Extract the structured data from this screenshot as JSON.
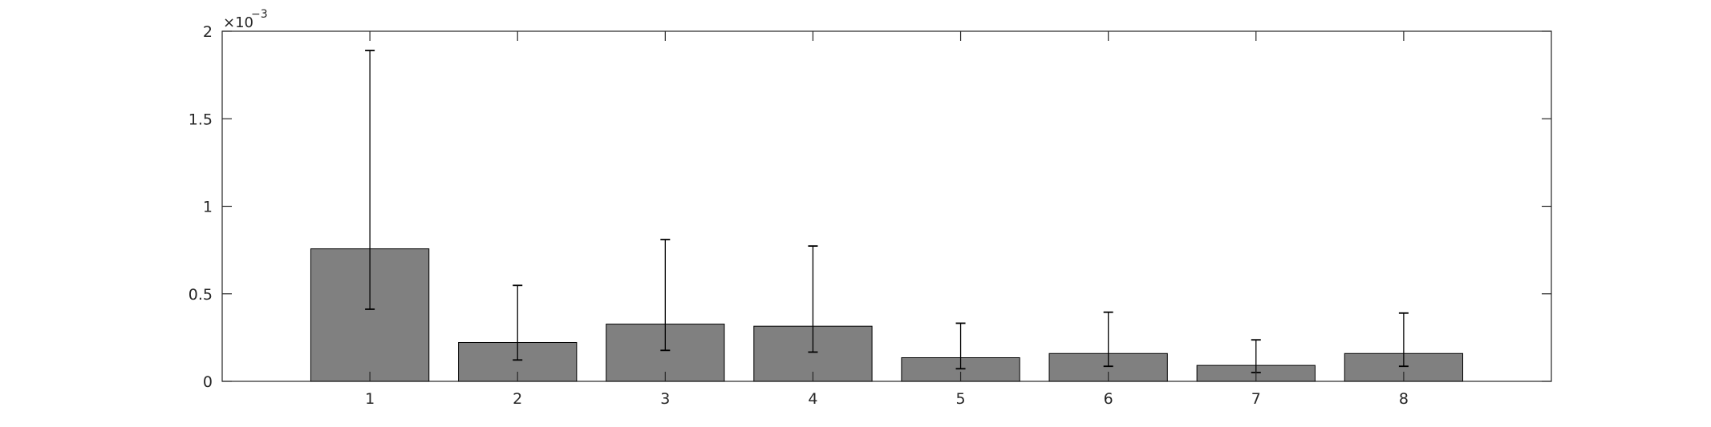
{
  "chart_data": {
    "type": "bar",
    "title": "",
    "xlabel": "",
    "ylabel": "",
    "categories": [
      "1",
      "2",
      "3",
      "4",
      "5",
      "6",
      "7",
      "8"
    ],
    "values": [
      0.000757,
      0.000222,
      0.000327,
      0.000315,
      0.000135,
      0.000159,
      9.1e-05,
      0.000159
    ],
    "error_low": [
      0.000412,
      0.000122,
      0.000177,
      0.000167,
      7.2e-05,
      8.6e-05,
      5e-05,
      8.6e-05
    ],
    "error_high": [
      0.00189,
      0.000548,
      0.00081,
      0.000773,
      0.000332,
      0.000395,
      0.000237,
      0.00039
    ],
    "ylim": [
      0,
      0.002
    ],
    "xlim": [
      0,
      9
    ],
    "y_ticks": [
      0,
      0.0005,
      0.001,
      0.0015,
      0.002
    ],
    "y_tick_labels": [
      "0",
      "0.5",
      "1",
      "1.5",
      "2"
    ],
    "y_exponent_base": "×10",
    "y_exponent_power": "−3",
    "grid": false,
    "bar_color": "#808080",
    "edge_color": "#000000",
    "axis_color": "#262626"
  }
}
